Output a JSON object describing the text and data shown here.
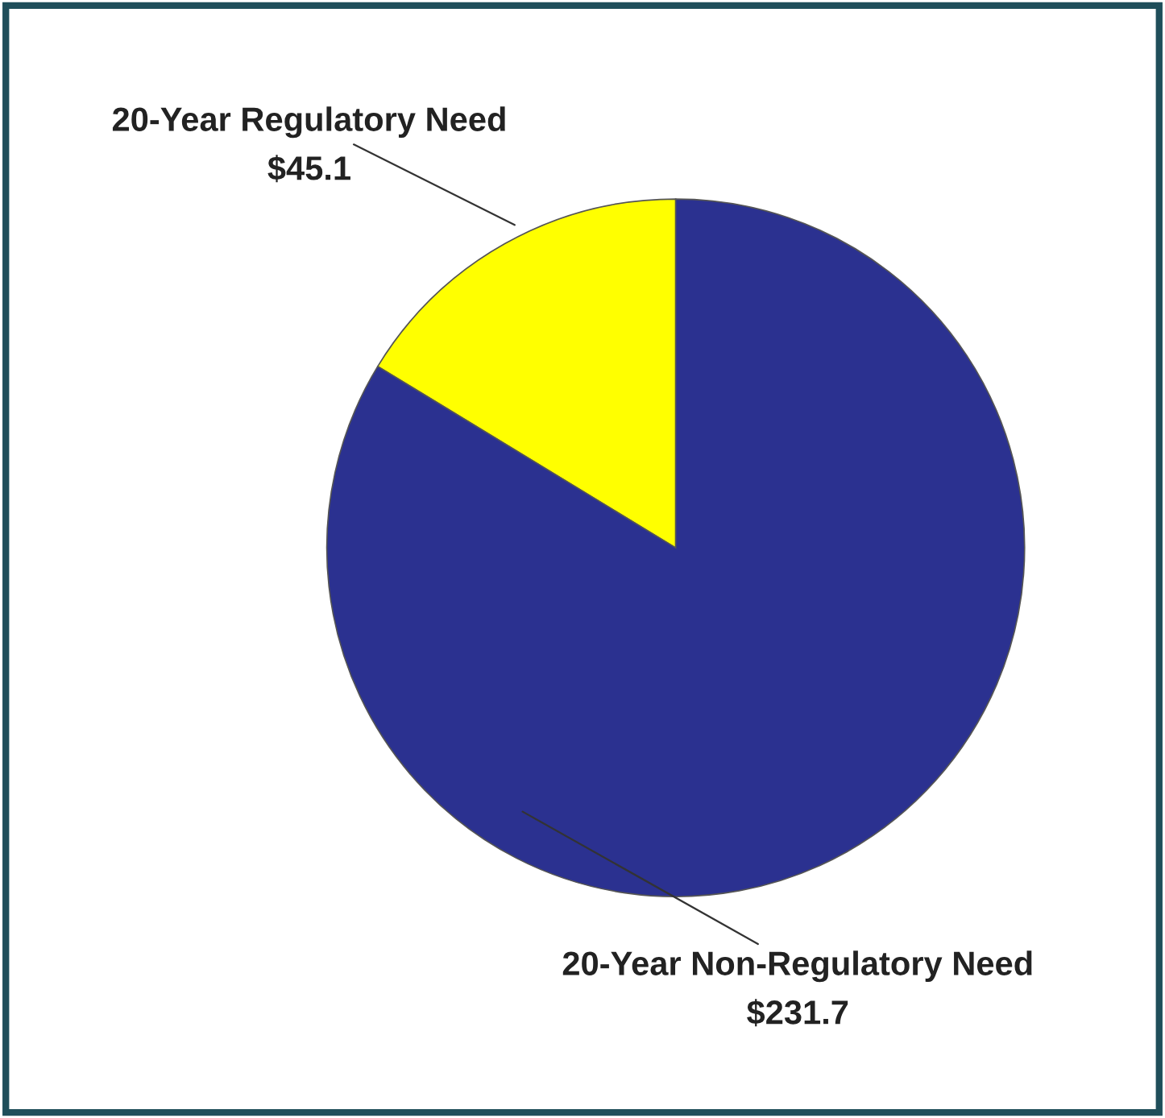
{
  "chart_data": {
    "type": "pie",
    "categories": [
      "20-Year Regulatory Need",
      "20-Year Non-Regulatory Need"
    ],
    "values": [
      45.1,
      231.7
    ],
    "colors": [
      "#ffff00",
      "#2b3190"
    ],
    "value_labels": [
      "$45.1",
      "$231.7"
    ]
  }
}
